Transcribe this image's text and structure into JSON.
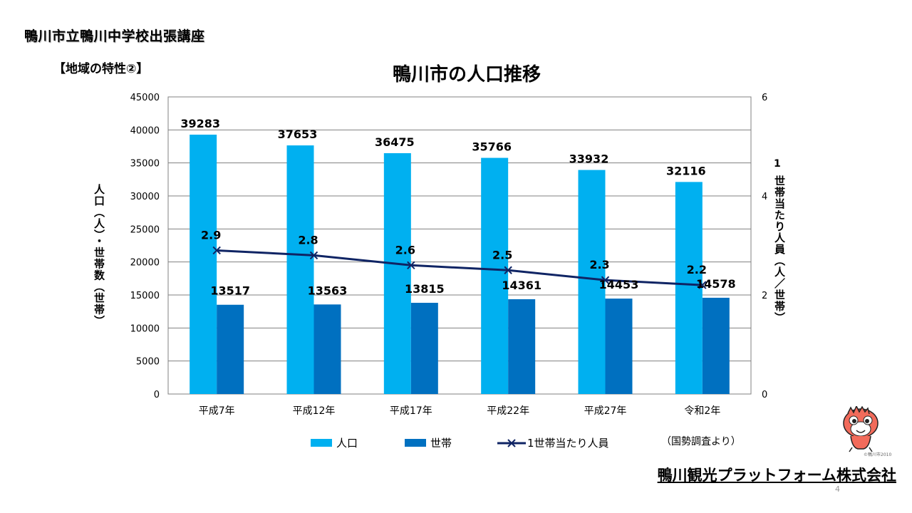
{
  "header": {
    "title": "鴨川市立鴨川中学校出張講座",
    "section": "【地域の特性②】"
  },
  "footer": {
    "company": "鴨川観光プラットフォーム株式会社",
    "page_number": "4",
    "source_note": "（国勢調査より）",
    "mascot_credit": "©鴨川市2010"
  },
  "colors": {
    "population": "#00B0F0",
    "households": "#0070C0",
    "per_household": "#0F2464",
    "grid": "#808080"
  },
  "chart_data": {
    "type": "bar",
    "title": "鴨川市の人口推移",
    "categories": [
      "平成7年",
      "平成12年",
      "平成17年",
      "平成22年",
      "平成27年",
      "令和2年"
    ],
    "series": [
      {
        "name": "人口",
        "type": "bar",
        "values": [
          39283,
          37653,
          36475,
          35766,
          33932,
          32116
        ]
      },
      {
        "name": "世帯",
        "type": "bar",
        "values": [
          13517,
          13563,
          13815,
          14361,
          14453,
          14578
        ]
      },
      {
        "name": "1世帯当たり人員",
        "type": "line",
        "axis": "right",
        "values": [
          2.9,
          2.8,
          2.6,
          2.5,
          2.3,
          2.2
        ]
      }
    ],
    "ylabel": "人口（人）・世帯数（世帯）",
    "ylim": [
      0,
      45000
    ],
    "yticks": [
      "0",
      "5000",
      "10000",
      "15000",
      "20000",
      "25000",
      "30000",
      "35000",
      "40000",
      "45000"
    ],
    "y2label_num": "1",
    "y2label": "世帯当たり人員（人／世帯）",
    "y2lim": [
      0,
      6
    ],
    "y2ticks": [
      "0",
      "2",
      "4",
      "6"
    ],
    "grid": true,
    "legend_position": "bottom"
  }
}
